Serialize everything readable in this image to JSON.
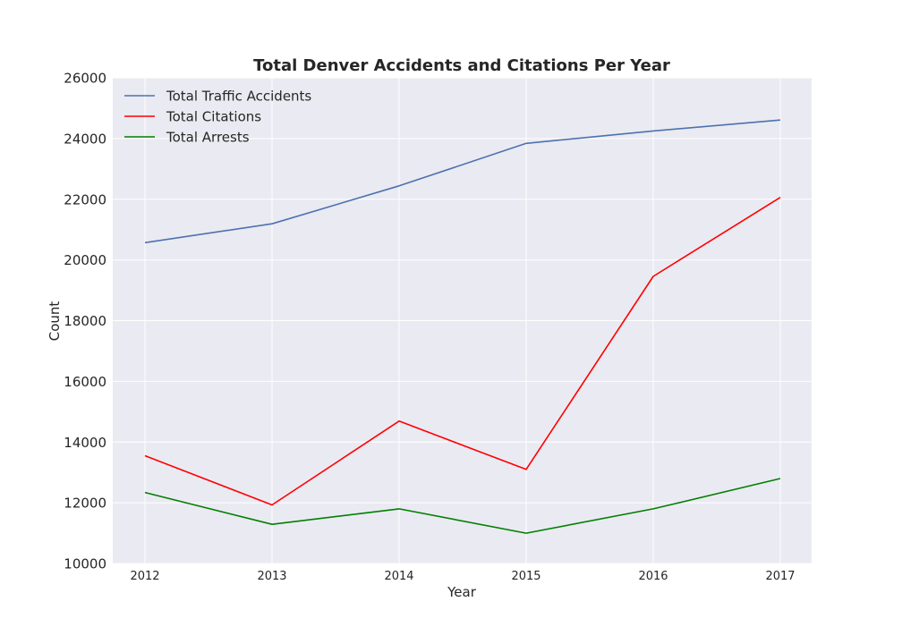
{
  "chart_data": {
    "type": "line",
    "title": "Total Denver Accidents and Citations Per Year",
    "xlabel": "Year",
    "ylabel": "Count",
    "categories": [
      "2012",
      "2013",
      "2014",
      "2015",
      "2016",
      "2017"
    ],
    "ylim": [
      10000,
      26000
    ],
    "yticks": [
      "10000",
      "12000",
      "14000",
      "16000",
      "18000",
      "20000",
      "22000",
      "24000",
      "26000"
    ],
    "grid": true,
    "legend_position": "top-left",
    "background_color": "#EAEAF2",
    "series": [
      {
        "name": "Total Traffic Accidents",
        "color": "#4C72B0",
        "values": [
          20570,
          21190,
          22440,
          23840,
          24250,
          24610
        ]
      },
      {
        "name": "Total Citations",
        "color": "#FF0000",
        "values": [
          13550,
          11930,
          14690,
          13100,
          19460,
          22060
        ]
      },
      {
        "name": "Total Arrests",
        "color": "#008000",
        "values": [
          12340,
          11290,
          11800,
          11000,
          11800,
          12800
        ]
      }
    ]
  }
}
